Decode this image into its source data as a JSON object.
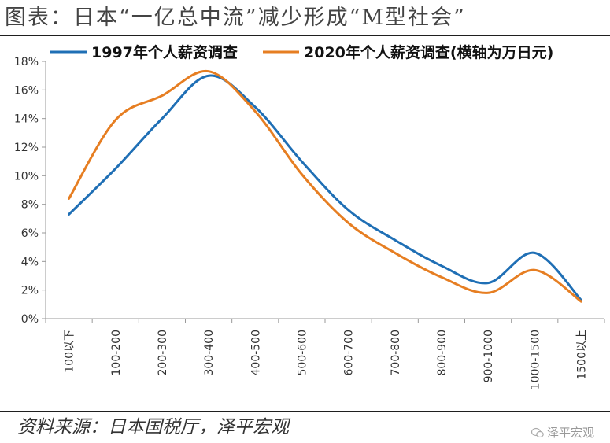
{
  "header": {
    "title": "图表：日本“一亿总中流”减少形成“M型社会”"
  },
  "footer": {
    "source": "资料来源：日本国税厅，泽平宏观",
    "watermark": "泽平宏观"
  },
  "chart_data": {
    "type": "line",
    "categories": [
      "100以下",
      "100-200",
      "200-300",
      "300-400",
      "400-500",
      "500-600",
      "600-700",
      "700-800",
      "800-900",
      "900-1000",
      "1000-1500",
      "1500以上"
    ],
    "y_tick_labels": [
      "0%",
      "2%",
      "4%",
      "6%",
      "8%",
      "10%",
      "12%",
      "14%",
      "16%",
      "18%"
    ],
    "ylim": [
      0,
      18
    ],
    "y_unit": "%",
    "legend_position": "top",
    "grid": false,
    "series": [
      {
        "name": "1997年个人薪资调查",
        "color": "#1F6FB5",
        "values": [
          7.3,
          10.5,
          14.0,
          17.0,
          14.8,
          11.0,
          7.6,
          5.5,
          3.7,
          2.5,
          4.6,
          1.3
        ]
      },
      {
        "name": "2020年个人薪资调查(横轴为万日元)",
        "color": "#E67E22",
        "values": [
          8.4,
          13.9,
          15.6,
          17.3,
          14.5,
          10.1,
          6.7,
          4.6,
          2.9,
          1.8,
          3.4,
          1.2
        ]
      }
    ]
  }
}
